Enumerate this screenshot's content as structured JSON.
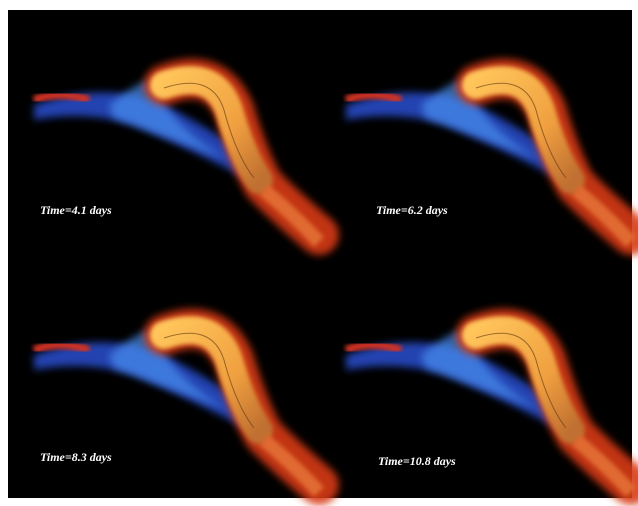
{
  "panels": [
    {
      "label": "Time=4.1 days"
    },
    {
      "label": "Time=6.2 days"
    },
    {
      "label": "Time=8.3 days"
    },
    {
      "label": "Time=10.8 days"
    }
  ]
}
